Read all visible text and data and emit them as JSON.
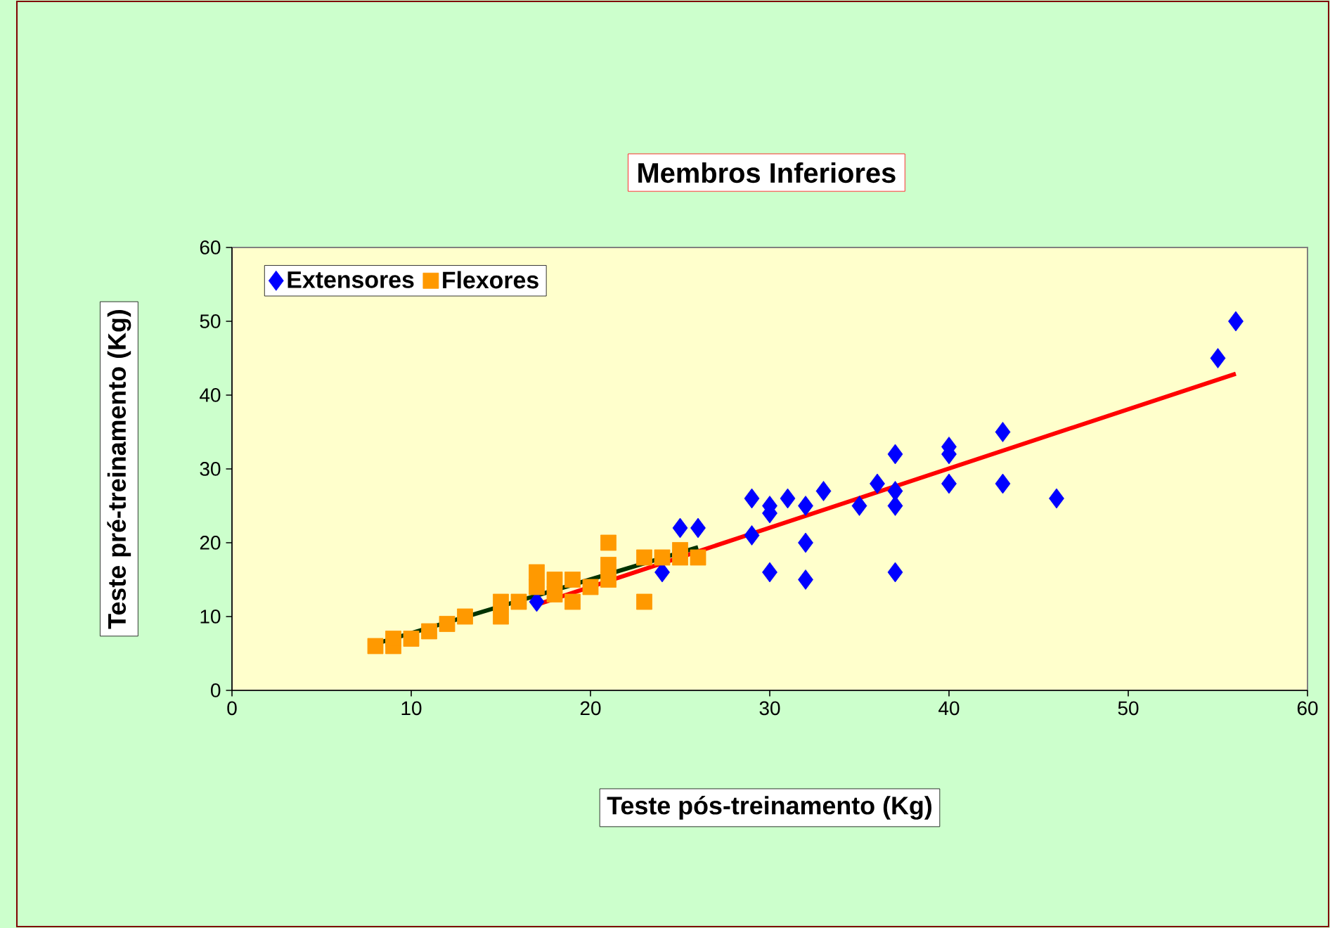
{
  "chart_data": {
    "type": "scatter",
    "title": "Membros Inferiores",
    "xlabel": "Teste pós-treinamento (Kg)",
    "ylabel": "Teste pré-treinamento (Kg)",
    "xlim": [
      0,
      60
    ],
    "ylim": [
      0,
      60
    ],
    "xticks": [
      0,
      10,
      20,
      30,
      40,
      50,
      60
    ],
    "yticks": [
      0,
      10,
      20,
      30,
      40,
      50,
      60
    ],
    "legend": "top left",
    "series": [
      {
        "name": "Extensores",
        "color": "#0000ff",
        "marker": "diamond",
        "x": [
          17,
          24,
          25,
          26,
          29,
          29,
          30,
          30,
          30,
          31,
          32,
          32,
          32,
          33,
          35,
          36,
          37,
          37,
          37,
          37,
          40,
          40,
          40,
          43,
          43,
          46,
          55,
          56
        ],
        "values": [
          12,
          16,
          22,
          22,
          21,
          26,
          16,
          24,
          25,
          26,
          25,
          20,
          15,
          27,
          25,
          28,
          32,
          27,
          25,
          16,
          33,
          32,
          28,
          35,
          28,
          26,
          45,
          50
        ]
      },
      {
        "name": "Flexores",
        "color": "#ff9900",
        "marker": "square",
        "x": [
          8,
          9,
          9,
          10,
          11,
          12,
          13,
          15,
          15,
          16,
          17,
          17,
          18,
          18,
          19,
          19,
          20,
          21,
          21,
          21,
          23,
          23,
          24,
          25,
          25,
          26
        ],
        "values": [
          6,
          6,
          7,
          7,
          8,
          9,
          10,
          10,
          12,
          12,
          14,
          16,
          15,
          13,
          15,
          12,
          14,
          15,
          17,
          20,
          12,
          18,
          18,
          19,
          18,
          18
        ]
      },
      {
        "type": "line",
        "color": "#ff0000",
        "x": [
          17,
          56
        ],
        "values": [
          11.6,
          42.9
        ]
      },
      {
        "type": "line",
        "color": "#003300",
        "x": [
          8,
          26
        ],
        "values": [
          6.3,
          19.4
        ]
      }
    ]
  }
}
